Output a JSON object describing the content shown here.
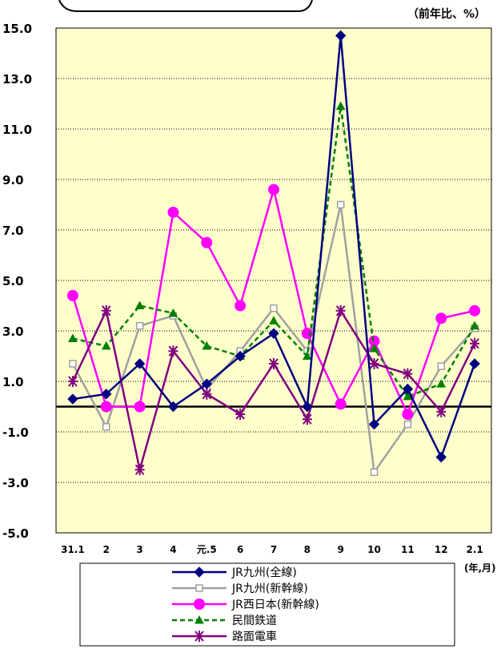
{
  "chart_data": {
    "type": "line",
    "unit_label": "（前年比、%）",
    "x_unit_label": "(年,月)",
    "categories": [
      "31.1",
      "2",
      "3",
      "4",
      "元.5",
      "6",
      "7",
      "8",
      "9",
      "10",
      "11",
      "12",
      "2.1"
    ],
    "ylim": [
      -5.0,
      15.0
    ],
    "yticks": [
      "15.0",
      "13.0",
      "11.0",
      "9.0",
      "7.0",
      "5.0",
      "3.0",
      "1.0",
      "-1.0",
      "-3.0",
      "-5.0"
    ],
    "ytick_values": [
      15,
      13,
      11,
      9,
      7,
      5,
      3,
      1,
      -1,
      -3,
      -5
    ],
    "grid": true,
    "legend_position": "bottom",
    "series": [
      {
        "name": "JR九州(全線)",
        "color": "#000080",
        "dash": "solid",
        "marker": "diamond",
        "values": [
          0.3,
          0.5,
          1.7,
          0.0,
          0.9,
          2.0,
          2.9,
          0.0,
          14.7,
          -0.7,
          0.7,
          -2.0,
          1.7
        ]
      },
      {
        "name": "JR九州(新幹線)",
        "color": "#a0a0a0",
        "dash": "solid",
        "marker": "square-open",
        "values": [
          1.7,
          -0.8,
          3.2,
          3.6,
          0.7,
          2.2,
          3.9,
          2.2,
          8.0,
          -2.6,
          -0.7,
          1.6,
          3.1
        ]
      },
      {
        "name": "JR西日本(新幹線)",
        "color": "#ff00ff",
        "dash": "solid",
        "marker": "circle",
        "values": [
          4.4,
          0.0,
          0.0,
          7.7,
          6.5,
          4.0,
          8.6,
          2.9,
          0.1,
          2.6,
          -0.3,
          3.5,
          3.8
        ]
      },
      {
        "name": "民間鉄道",
        "color": "#008000",
        "dash": "dashed",
        "marker": "triangle",
        "values": [
          2.7,
          2.4,
          4.0,
          3.7,
          2.4,
          2.0,
          3.4,
          2.0,
          11.9,
          2.3,
          0.4,
          0.9,
          3.2
        ]
      },
      {
        "name": "路面電車",
        "color": "#800080",
        "dash": "solid",
        "marker": "star",
        "values": [
          1.0,
          3.8,
          -2.5,
          2.2,
          0.5,
          -0.3,
          1.7,
          -0.5,
          3.8,
          1.7,
          1.3,
          -0.2,
          2.5
        ]
      }
    ]
  }
}
